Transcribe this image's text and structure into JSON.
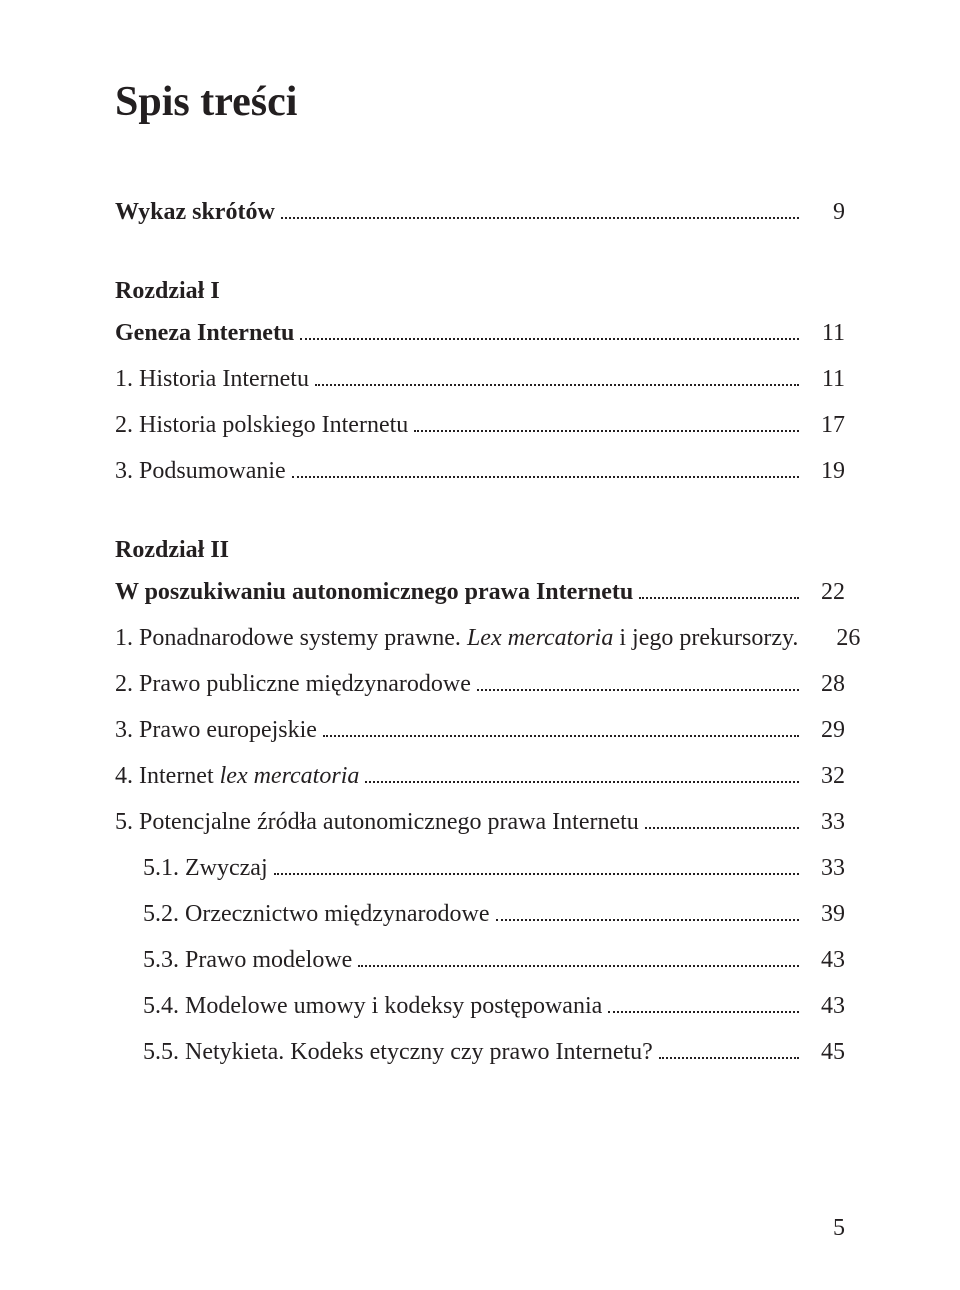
{
  "title": "Spis treści",
  "entries": [
    {
      "label": "Wykaz skrótów",
      "page": "9",
      "bold": true,
      "hasDots": true
    },
    {
      "gap": true
    },
    {
      "chapterHeading": "Rozdział I"
    },
    {
      "label": "Geneza Internetu",
      "page": "11",
      "bold": true,
      "hasDots": true
    },
    {
      "label": "1. Historia Internetu",
      "page": "11",
      "hasDots": true
    },
    {
      "label": "2. Historia polskiego Internetu",
      "page": "17",
      "hasDots": true
    },
    {
      "label": "3. Podsumowanie",
      "page": "19",
      "hasDots": true
    },
    {
      "gap": true
    },
    {
      "chapterHeading": "Rozdział II"
    },
    {
      "label": "W poszukiwaniu autonomicznego prawa Internetu",
      "page": "22",
      "bold": true,
      "hasDots": true
    },
    {
      "labelParts": [
        {
          "text": "1. Ponadnarodowe systemy prawne. "
        },
        {
          "text": "Lex mercatoria",
          "italic": true
        },
        {
          "text": " i jego prekursorzy."
        }
      ],
      "page": "26",
      "hasDots": false
    },
    {
      "label": "2. Prawo publiczne międzynarodowe",
      "page": "28",
      "hasDots": true
    },
    {
      "label": "3. Prawo europejskie",
      "page": "29",
      "hasDots": true
    },
    {
      "labelParts": [
        {
          "text": "4. Internet "
        },
        {
          "text": "lex mercatoria",
          "italic": true
        }
      ],
      "page": "32",
      "hasDots": true
    },
    {
      "label": "5. Potencjalne źródła autonomicznego prawa Internetu",
      "page": "33",
      "hasDots": true
    },
    {
      "label": "5.1. Zwyczaj",
      "page": "33",
      "hasDots": true,
      "indent": 1
    },
    {
      "label": "5.2. Orzecznictwo międzynarodowe",
      "page": "39",
      "hasDots": true,
      "indent": 1
    },
    {
      "label": "5.3. Prawo modelowe",
      "page": "43",
      "hasDots": true,
      "indent": 1
    },
    {
      "label": "5.4. Modelowe umowy i kodeksy postępowania",
      "page": "43",
      "hasDots": true,
      "indent": 1
    },
    {
      "label": "5.5. Netykieta. Kodeks etyczny czy prawo Internetu?",
      "page": "45",
      "hasDots": true,
      "indent": 1
    }
  ],
  "footerPage": "5",
  "colors": {
    "text": "#231f20",
    "background": "#ffffff"
  },
  "typography": {
    "titleSize": 42,
    "bodySize": 24,
    "fontFamily": "Palatino Linotype / Book Antiqua / serif"
  }
}
